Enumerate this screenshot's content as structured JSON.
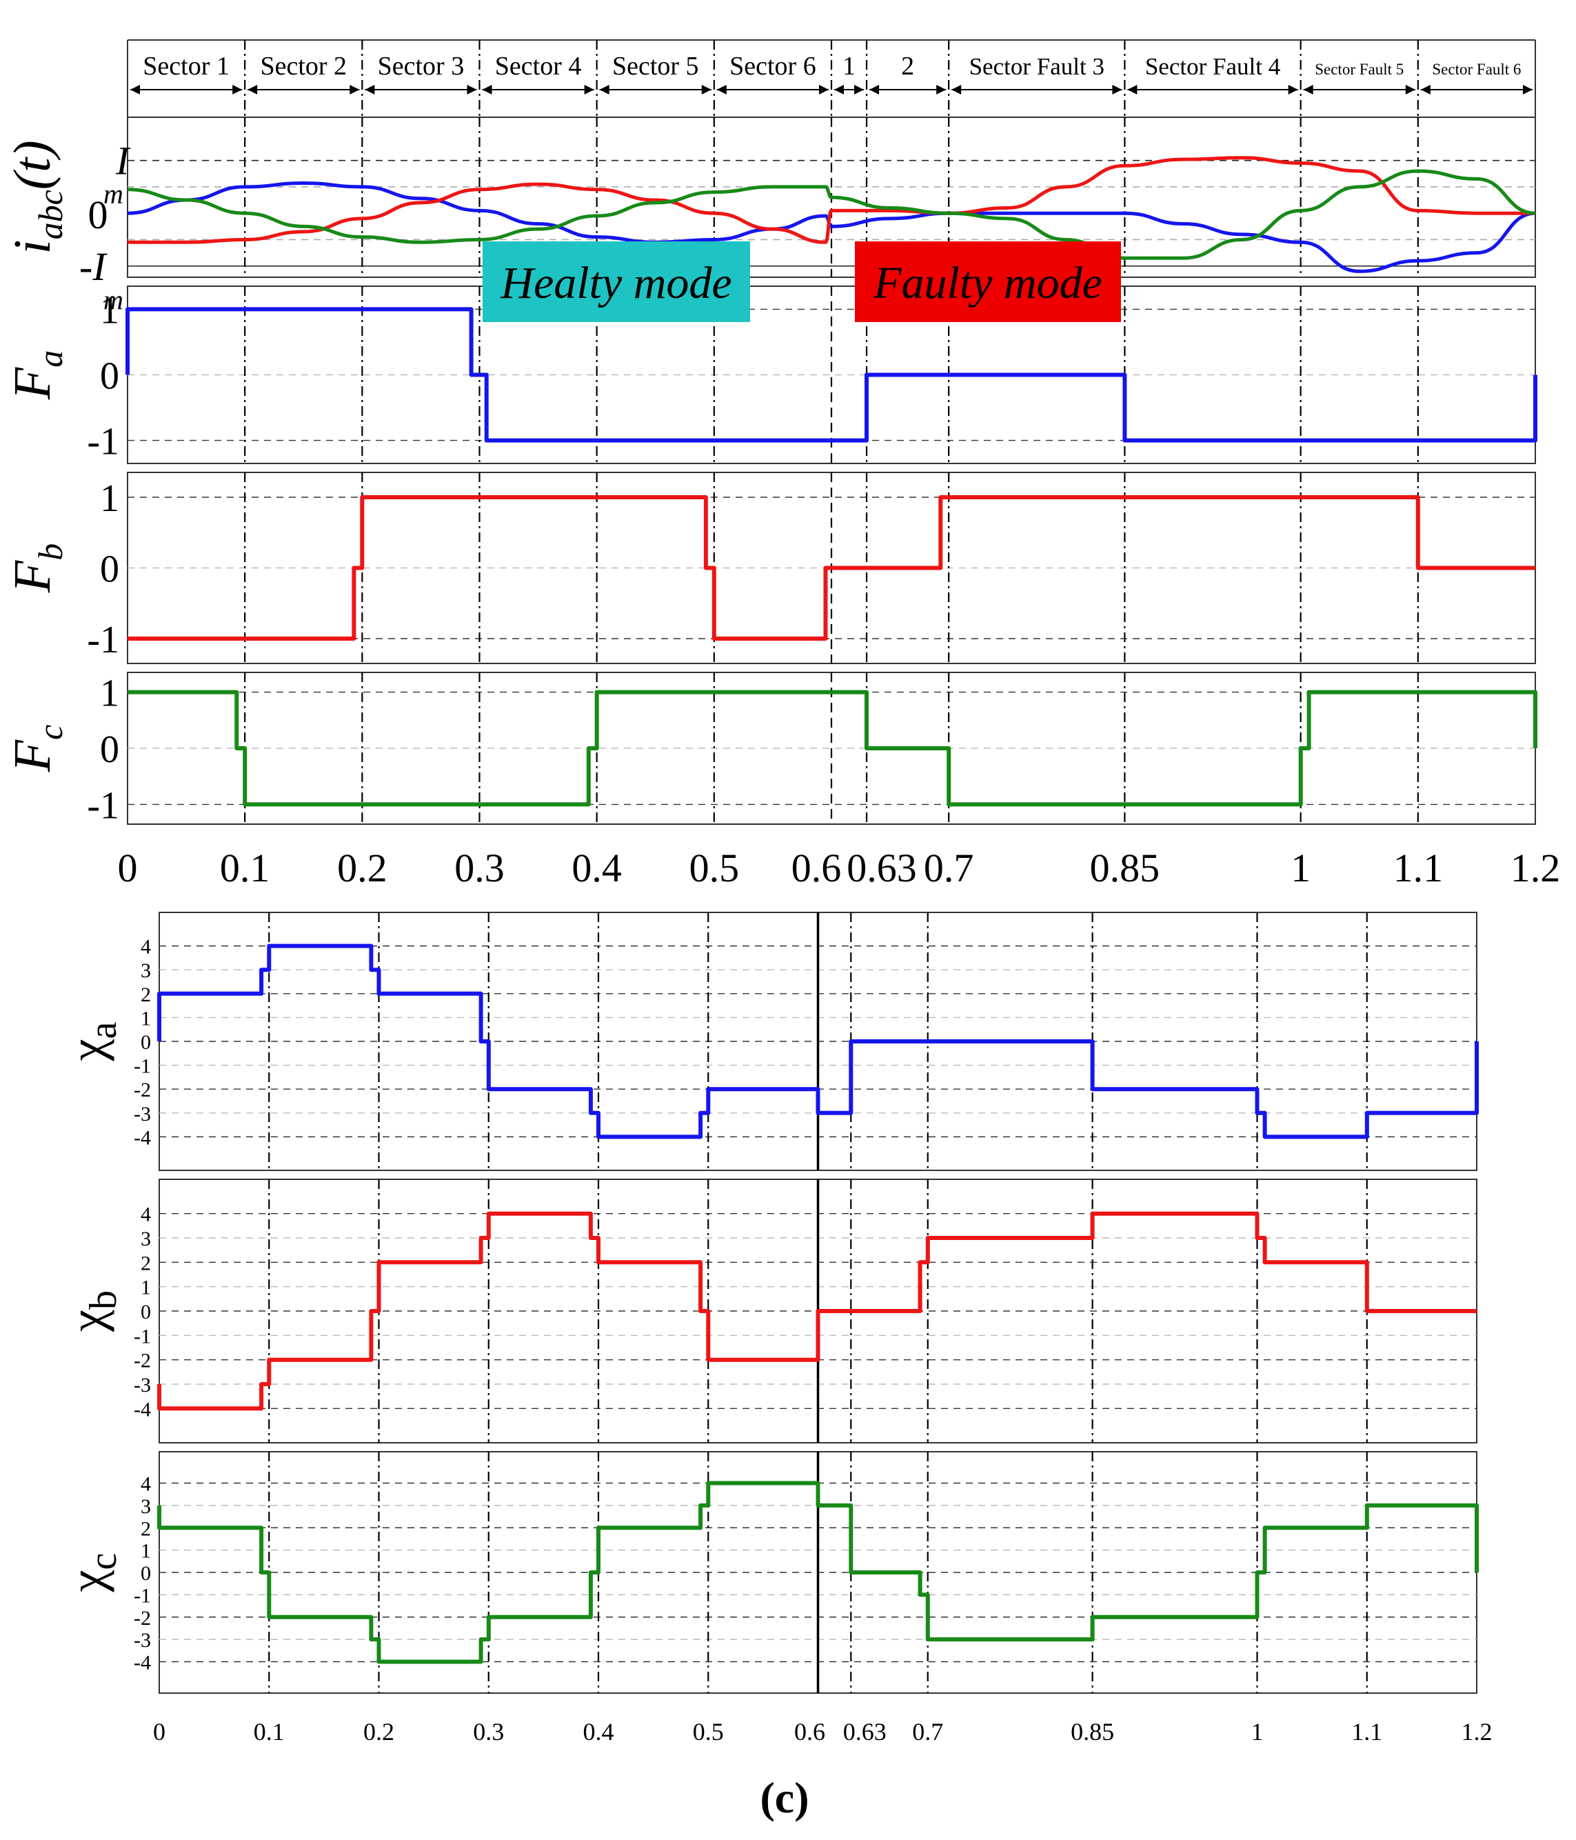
{
  "figure_label": "(c)",
  "colors": {
    "a": "#1515ee",
    "b": "#ee1515",
    "c": "#178a17",
    "healthy_badge": "#1ec3c3",
    "faulty_badge": "#ee0000"
  },
  "sectors": [
    "Sector 1",
    "Sector 2",
    "Sector 3",
    "Sector 4",
    "Sector 5",
    "Sector 6",
    "1",
    "2",
    "Sector Fault 3",
    "Sector Fault 4",
    "Sector Fault 5",
    "Sector Fault 6"
  ],
  "mode_labels": {
    "healthy": "Healty mode",
    "faulty": "Faulty mode"
  },
  "x_ticks": [
    {
      "v": 0,
      "t": "0"
    },
    {
      "v": 0.1,
      "t": "0.1"
    },
    {
      "v": 0.2,
      "t": "0.2"
    },
    {
      "v": 0.3,
      "t": "0.3"
    },
    {
      "v": 0.4,
      "t": "0.4"
    },
    {
      "v": 0.5,
      "t": "0.5"
    },
    {
      "v": 0.6,
      "t": "0.6"
    },
    {
      "v": 0.63,
      "t": "0.63"
    },
    {
      "v": 0.7,
      "t": "0.7"
    },
    {
      "v": 0.85,
      "t": "0.85"
    },
    {
      "v": 1,
      "t": "1"
    },
    {
      "v": 1.1,
      "t": "1.1"
    },
    {
      "v": 1.2,
      "t": "1.2"
    }
  ],
  "y_labels": {
    "iabc": {
      "main": "i",
      "sub": "abc",
      "tail": "(t)"
    },
    "Fa": {
      "main": "F",
      "sub": "a"
    },
    "Fb": {
      "main": "F",
      "sub": "b"
    },
    "Fc": {
      "main": "F",
      "sub": "c"
    },
    "xa": {
      "main": "χ",
      "sub": "a"
    },
    "xb": {
      "main": "χ",
      "sub": "b"
    },
    "xc": {
      "main": "χ",
      "sub": "c"
    }
  },
  "current_ticks": {
    "top": "I",
    "top_sub": "m",
    "zero": "0",
    "bottom": "-I",
    "bottom_sub": "m"
  },
  "chart_data": [
    {
      "type": "line",
      "ylabel": "i_abc(t)",
      "x_range": [
        0,
        1.2
      ],
      "ylim": [
        -1,
        1
      ],
      "series": [
        {
          "values": [
            [
              0,
              0
            ],
            [
              0.05,
              0.25
            ],
            [
              0.1,
              0.5
            ],
            [
              0.15,
              0.57
            ],
            [
              0.2,
              0.5
            ],
            [
              0.25,
              0.28
            ],
            [
              0.3,
              0.05
            ],
            [
              0.35,
              -0.2
            ],
            [
              0.4,
              -0.45
            ],
            [
              0.45,
              -0.55
            ],
            [
              0.5,
              -0.5
            ],
            [
              0.55,
              -0.3
            ],
            [
              0.595,
              -0.05
            ],
            [
              0.6,
              -0.25
            ],
            [
              0.65,
              -0.1
            ],
            [
              0.7,
              0
            ],
            [
              0.75,
              0
            ],
            [
              0.8,
              0
            ],
            [
              0.85,
              0
            ],
            [
              0.9,
              -0.2
            ],
            [
              0.95,
              -0.4
            ],
            [
              1,
              -0.55
            ],
            [
              1.05,
              -1.1
            ],
            [
              1.1,
              -0.9
            ],
            [
              1.15,
              -0.75
            ],
            [
              1.2,
              0
            ]
          ]
        },
        {
          "values": [
            [
              0,
              -0.55
            ],
            [
              0.05,
              -0.55
            ],
            [
              0.1,
              -0.5
            ],
            [
              0.15,
              -0.35
            ],
            [
              0.2,
              -0.1
            ],
            [
              0.25,
              0.2
            ],
            [
              0.3,
              0.45
            ],
            [
              0.35,
              0.55
            ],
            [
              0.4,
              0.45
            ],
            [
              0.45,
              0.25
            ],
            [
              0.5,
              0
            ],
            [
              0.55,
              -0.3
            ],
            [
              0.595,
              -0.55
            ],
            [
              0.6,
              0.05
            ],
            [
              0.65,
              0.05
            ],
            [
              0.7,
              0
            ],
            [
              0.75,
              0.1
            ],
            [
              0.8,
              0.5
            ],
            [
              0.85,
              0.9
            ],
            [
              0.9,
              1.02
            ],
            [
              0.95,
              1.05
            ],
            [
              1,
              0.95
            ],
            [
              1.05,
              0.8
            ],
            [
              1.1,
              0.05
            ],
            [
              1.15,
              0
            ],
            [
              1.2,
              0
            ]
          ]
        },
        {
          "values": [
            [
              0,
              0.45
            ],
            [
              0.05,
              0.25
            ],
            [
              0.1,
              0
            ],
            [
              0.15,
              -0.25
            ],
            [
              0.2,
              -0.45
            ],
            [
              0.25,
              -0.55
            ],
            [
              0.3,
              -0.5
            ],
            [
              0.35,
              -0.3
            ],
            [
              0.4,
              -0.05
            ],
            [
              0.45,
              0.2
            ],
            [
              0.5,
              0.4
            ],
            [
              0.55,
              0.5
            ],
            [
              0.595,
              0.5
            ],
            [
              0.6,
              0.3
            ],
            [
              0.65,
              0.1
            ],
            [
              0.7,
              0
            ],
            [
              0.75,
              -0.1
            ],
            [
              0.8,
              -0.5
            ],
            [
              0.85,
              -0.85
            ],
            [
              0.9,
              -0.85
            ],
            [
              0.95,
              -0.5
            ],
            [
              1,
              0.05
            ],
            [
              1.05,
              0.5
            ],
            [
              1.1,
              0.8
            ],
            [
              1.15,
              0.65
            ],
            [
              1.2,
              0
            ]
          ]
        }
      ]
    },
    {
      "type": "line",
      "ylabel": "F_a",
      "ylim": [
        -1,
        1
      ],
      "yticks": [
        "1",
        "0",
        "-1"
      ],
      "series": [
        {
          "values": [
            [
              0,
              0
            ],
            [
              0,
              1
            ],
            [
              0.293,
              1
            ],
            [
              0.293,
              0
            ],
            [
              0.306,
              0
            ],
            [
              0.306,
              -1
            ],
            [
              0.63,
              -1
            ],
            [
              0.63,
              0
            ],
            [
              0.85,
              0
            ],
            [
              0.85,
              -1
            ],
            [
              1.2,
              -1
            ],
            [
              1.2,
              0
            ]
          ]
        }
      ]
    },
    {
      "type": "line",
      "ylabel": "F_b",
      "ylim": [
        -1,
        1
      ],
      "yticks": [
        "1",
        "0",
        "-1"
      ],
      "series": [
        {
          "values": [
            [
              0,
              -1
            ],
            [
              0.193,
              -1
            ],
            [
              0.193,
              0
            ],
            [
              0.2,
              0
            ],
            [
              0.2,
              1
            ],
            [
              0.493,
              1
            ],
            [
              0.493,
              0
            ],
            [
              0.5,
              0
            ],
            [
              0.5,
              -1
            ],
            [
              0.595,
              -1
            ],
            [
              0.595,
              0
            ],
            [
              0.693,
              0
            ],
            [
              0.693,
              1
            ],
            [
              1.1,
              1
            ],
            [
              1.1,
              0
            ],
            [
              1.2,
              0
            ]
          ]
        }
      ]
    },
    {
      "type": "line",
      "ylabel": "F_c",
      "ylim": [
        -1,
        1
      ],
      "yticks": [
        "1",
        "0",
        "-1"
      ],
      "series": [
        {
          "values": [
            [
              0,
              1
            ],
            [
              0.093,
              1
            ],
            [
              0.093,
              0
            ],
            [
              0.1,
              0
            ],
            [
              0.1,
              -1
            ],
            [
              0.393,
              -1
            ],
            [
              0.393,
              0
            ],
            [
              0.4,
              0
            ],
            [
              0.4,
              1
            ],
            [
              0.63,
              1
            ],
            [
              0.63,
              0
            ],
            [
              0.7,
              0
            ],
            [
              0.7,
              -1
            ],
            [
              1,
              -1
            ],
            [
              1,
              0
            ],
            [
              1.007,
              0
            ],
            [
              1.007,
              1
            ],
            [
              1.2,
              1
            ],
            [
              1.2,
              0
            ]
          ]
        }
      ]
    },
    {
      "type": "line",
      "ylabel": "χ_a",
      "ylim": [
        -4,
        4
      ],
      "yticks": [
        "4",
        "3",
        "2",
        "1",
        "0",
        "-1",
        "-2",
        "-3",
        "-4"
      ],
      "series": [
        {
          "values": [
            [
              0,
              0
            ],
            [
              0,
              2
            ],
            [
              0.093,
              2
            ],
            [
              0.093,
              3
            ],
            [
              0.1,
              3
            ],
            [
              0.1,
              4
            ],
            [
              0.193,
              4
            ],
            [
              0.193,
              3
            ],
            [
              0.2,
              3
            ],
            [
              0.2,
              2
            ],
            [
              0.293,
              2
            ],
            [
              0.293,
              0
            ],
            [
              0.3,
              0
            ],
            [
              0.3,
              -2
            ],
            [
              0.393,
              -2
            ],
            [
              0.393,
              -3
            ],
            [
              0.4,
              -3
            ],
            [
              0.4,
              -4
            ],
            [
              0.493,
              -4
            ],
            [
              0.493,
              -3
            ],
            [
              0.5,
              -3
            ],
            [
              0.5,
              -2
            ],
            [
              0.6,
              -2
            ],
            [
              0.6,
              -3
            ],
            [
              0.63,
              -3
            ],
            [
              0.63,
              0
            ],
            [
              0.85,
              0
            ],
            [
              0.85,
              -2
            ],
            [
              1,
              -2
            ],
            [
              1,
              -3
            ],
            [
              1.007,
              -3
            ],
            [
              1.007,
              -4
            ],
            [
              1.1,
              -4
            ],
            [
              1.1,
              -3
            ],
            [
              1.2,
              -3
            ],
            [
              1.2,
              0
            ]
          ]
        }
      ]
    },
    {
      "type": "line",
      "ylabel": "χ_b",
      "ylim": [
        -4,
        4
      ],
      "yticks": [
        "4",
        "3",
        "2",
        "1",
        "0",
        "-1",
        "-2",
        "-3",
        "-4"
      ],
      "series": [
        {
          "values": [
            [
              0,
              -3
            ],
            [
              0,
              -4
            ],
            [
              0.093,
              -4
            ],
            [
              0.093,
              -3
            ],
            [
              0.1,
              -3
            ],
            [
              0.1,
              -2
            ],
            [
              0.193,
              -2
            ],
            [
              0.193,
              0
            ],
            [
              0.2,
              0
            ],
            [
              0.2,
              2
            ],
            [
              0.293,
              2
            ],
            [
              0.293,
              3
            ],
            [
              0.3,
              3
            ],
            [
              0.3,
              4
            ],
            [
              0.393,
              4
            ],
            [
              0.393,
              3
            ],
            [
              0.4,
              3
            ],
            [
              0.4,
              2
            ],
            [
              0.493,
              2
            ],
            [
              0.493,
              0
            ],
            [
              0.5,
              0
            ],
            [
              0.5,
              -2
            ],
            [
              0.6,
              -2
            ],
            [
              0.6,
              0
            ],
            [
              0.693,
              0
            ],
            [
              0.693,
              2
            ],
            [
              0.7,
              2
            ],
            [
              0.7,
              3
            ],
            [
              0.85,
              3
            ],
            [
              0.85,
              4
            ],
            [
              1,
              4
            ],
            [
              1,
              3
            ],
            [
              1.007,
              3
            ],
            [
              1.007,
              2
            ],
            [
              1.1,
              2
            ],
            [
              1.1,
              0
            ],
            [
              1.2,
              0
            ]
          ]
        }
      ]
    },
    {
      "type": "line",
      "ylabel": "χ_c",
      "ylim": [
        -4,
        4
      ],
      "yticks": [
        "4",
        "3",
        "2",
        "1",
        "0",
        "-1",
        "-2",
        "-3",
        "-4"
      ],
      "series": [
        {
          "values": [
            [
              0,
              3
            ],
            [
              0,
              2
            ],
            [
              0.093,
              2
            ],
            [
              0.093,
              0
            ],
            [
              0.1,
              0
            ],
            [
              0.1,
              -2
            ],
            [
              0.193,
              -2
            ],
            [
              0.193,
              -3
            ],
            [
              0.2,
              -3
            ],
            [
              0.2,
              -4
            ],
            [
              0.293,
              -4
            ],
            [
              0.293,
              -3
            ],
            [
              0.3,
              -3
            ],
            [
              0.3,
              -2
            ],
            [
              0.393,
              -2
            ],
            [
              0.393,
              0
            ],
            [
              0.4,
              0
            ],
            [
              0.4,
              2
            ],
            [
              0.493,
              2
            ],
            [
              0.493,
              3
            ],
            [
              0.5,
              3
            ],
            [
              0.5,
              4
            ],
            [
              0.6,
              4
            ],
            [
              0.6,
              3
            ],
            [
              0.63,
              3
            ],
            [
              0.63,
              0
            ],
            [
              0.693,
              0
            ],
            [
              0.693,
              -1
            ],
            [
              0.7,
              -1
            ],
            [
              0.7,
              -3
            ],
            [
              0.85,
              -3
            ],
            [
              0.85,
              -2
            ],
            [
              1,
              -2
            ],
            [
              1,
              0
            ],
            [
              1.007,
              0
            ],
            [
              1.007,
              2
            ],
            [
              1.1,
              2
            ],
            [
              1.1,
              3
            ],
            [
              1.2,
              3
            ],
            [
              1.2,
              0
            ]
          ]
        }
      ]
    }
  ]
}
